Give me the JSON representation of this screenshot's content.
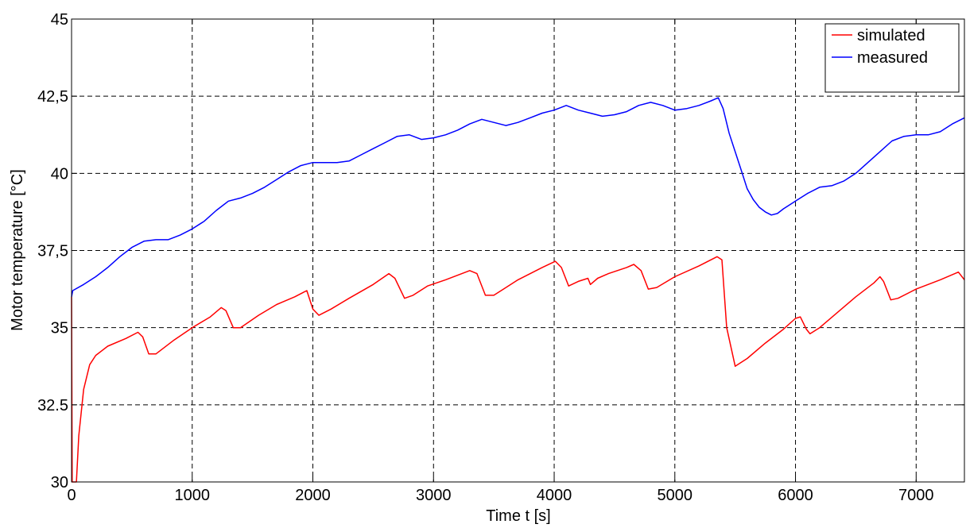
{
  "chart_data": {
    "type": "line",
    "title": "",
    "xlabel": "Time t [s]",
    "ylabel": "Motor temperature [°C]",
    "xlim": [
      0,
      7400
    ],
    "ylim": [
      30,
      45
    ],
    "xticks": [
      0,
      1000,
      2000,
      3000,
      4000,
      5000,
      6000,
      7000
    ],
    "xtick_labels": [
      "0",
      "1000",
      "2000",
      "3000",
      "4000",
      "5000",
      "6000",
      "7000"
    ],
    "yticks": [
      30,
      32.5,
      35,
      37.5,
      40,
      42.5,
      45
    ],
    "ytick_labels": [
      "30",
      "32.5",
      "35",
      "37,5",
      "40",
      "42,5",
      "45"
    ],
    "grid": true,
    "legend_position": "top-right",
    "series": [
      {
        "name": "simulated",
        "color": "#ff0000",
        "points": [
          [
            0,
            36.0
          ],
          [
            5,
            30.0
          ],
          [
            40,
            30.0
          ],
          [
            60,
            31.5
          ],
          [
            100,
            33.0
          ],
          [
            150,
            33.8
          ],
          [
            200,
            34.1
          ],
          [
            300,
            34.4
          ],
          [
            450,
            34.65
          ],
          [
            550,
            34.85
          ],
          [
            590,
            34.7
          ],
          [
            640,
            34.15
          ],
          [
            700,
            34.15
          ],
          [
            850,
            34.6
          ],
          [
            1000,
            35.0
          ],
          [
            1150,
            35.35
          ],
          [
            1240,
            35.65
          ],
          [
            1280,
            35.55
          ],
          [
            1340,
            35.0
          ],
          [
            1400,
            35.0
          ],
          [
            1550,
            35.4
          ],
          [
            1700,
            35.75
          ],
          [
            1850,
            36.0
          ],
          [
            1950,
            36.2
          ],
          [
            2000,
            35.6
          ],
          [
            2050,
            35.4
          ],
          [
            2150,
            35.6
          ],
          [
            2300,
            35.95
          ],
          [
            2500,
            36.4
          ],
          [
            2630,
            36.75
          ],
          [
            2680,
            36.6
          ],
          [
            2760,
            35.95
          ],
          [
            2830,
            36.05
          ],
          [
            2950,
            36.35
          ],
          [
            3100,
            36.55
          ],
          [
            3300,
            36.85
          ],
          [
            3360,
            36.75
          ],
          [
            3430,
            36.05
          ],
          [
            3500,
            36.05
          ],
          [
            3700,
            36.55
          ],
          [
            3900,
            36.95
          ],
          [
            4010,
            37.15
          ],
          [
            4060,
            36.95
          ],
          [
            4120,
            36.35
          ],
          [
            4200,
            36.5
          ],
          [
            4280,
            36.6
          ],
          [
            4300,
            36.4
          ],
          [
            4360,
            36.6
          ],
          [
            4450,
            36.75
          ],
          [
            4600,
            36.95
          ],
          [
            4660,
            37.05
          ],
          [
            4720,
            36.85
          ],
          [
            4780,
            36.25
          ],
          [
            4850,
            36.3
          ],
          [
            5000,
            36.65
          ],
          [
            5200,
            37.0
          ],
          [
            5350,
            37.3
          ],
          [
            5390,
            37.2
          ],
          [
            5430,
            35.0
          ],
          [
            5500,
            33.75
          ],
          [
            5600,
            34.0
          ],
          [
            5750,
            34.5
          ],
          [
            5900,
            34.95
          ],
          [
            6000,
            35.3
          ],
          [
            6040,
            35.35
          ],
          [
            6090,
            34.95
          ],
          [
            6120,
            34.8
          ],
          [
            6200,
            35.0
          ],
          [
            6350,
            35.5
          ],
          [
            6500,
            36.0
          ],
          [
            6650,
            36.45
          ],
          [
            6700,
            36.65
          ],
          [
            6730,
            36.5
          ],
          [
            6790,
            35.9
          ],
          [
            6850,
            35.95
          ],
          [
            7000,
            36.25
          ],
          [
            7200,
            36.55
          ],
          [
            7350,
            36.8
          ],
          [
            7400,
            36.55
          ]
        ]
      },
      {
        "name": "measured",
        "color": "#0000ff",
        "points": [
          [
            0,
            36.0
          ],
          [
            10,
            36.2
          ],
          [
            100,
            36.4
          ],
          [
            200,
            36.65
          ],
          [
            300,
            36.95
          ],
          [
            400,
            37.3
          ],
          [
            500,
            37.6
          ],
          [
            600,
            37.8
          ],
          [
            700,
            37.85
          ],
          [
            800,
            37.85
          ],
          [
            900,
            38.0
          ],
          [
            1000,
            38.2
          ],
          [
            1100,
            38.45
          ],
          [
            1200,
            38.8
          ],
          [
            1300,
            39.1
          ],
          [
            1400,
            39.2
          ],
          [
            1500,
            39.35
          ],
          [
            1600,
            39.55
          ],
          [
            1700,
            39.8
          ],
          [
            1800,
            40.05
          ],
          [
            1900,
            40.25
          ],
          [
            2000,
            40.35
          ],
          [
            2100,
            40.35
          ],
          [
            2200,
            40.35
          ],
          [
            2300,
            40.4
          ],
          [
            2400,
            40.6
          ],
          [
            2500,
            40.8
          ],
          [
            2600,
            41.0
          ],
          [
            2700,
            41.2
          ],
          [
            2800,
            41.25
          ],
          [
            2900,
            41.1
          ],
          [
            3000,
            41.15
          ],
          [
            3100,
            41.25
          ],
          [
            3200,
            41.4
          ],
          [
            3300,
            41.6
          ],
          [
            3400,
            41.75
          ],
          [
            3500,
            41.65
          ],
          [
            3600,
            41.55
          ],
          [
            3700,
            41.65
          ],
          [
            3800,
            41.8
          ],
          [
            3900,
            41.95
          ],
          [
            4000,
            42.05
          ],
          [
            4100,
            42.2
          ],
          [
            4200,
            42.05
          ],
          [
            4300,
            41.95
          ],
          [
            4400,
            41.85
          ],
          [
            4500,
            41.9
          ],
          [
            4600,
            42.0
          ],
          [
            4700,
            42.2
          ],
          [
            4800,
            42.3
          ],
          [
            4900,
            42.2
          ],
          [
            5000,
            42.05
          ],
          [
            5100,
            42.1
          ],
          [
            5200,
            42.2
          ],
          [
            5300,
            42.35
          ],
          [
            5360,
            42.45
          ],
          [
            5400,
            42.1
          ],
          [
            5450,
            41.3
          ],
          [
            5500,
            40.7
          ],
          [
            5550,
            40.1
          ],
          [
            5600,
            39.5
          ],
          [
            5650,
            39.15
          ],
          [
            5700,
            38.9
          ],
          [
            5750,
            38.75
          ],
          [
            5800,
            38.65
          ],
          [
            5850,
            38.7
          ],
          [
            5900,
            38.85
          ],
          [
            6000,
            39.1
          ],
          [
            6100,
            39.35
          ],
          [
            6200,
            39.55
          ],
          [
            6300,
            39.6
          ],
          [
            6400,
            39.75
          ],
          [
            6500,
            40.0
          ],
          [
            6600,
            40.35
          ],
          [
            6700,
            40.7
          ],
          [
            6800,
            41.05
          ],
          [
            6900,
            41.2
          ],
          [
            7000,
            41.25
          ],
          [
            7100,
            41.25
          ],
          [
            7200,
            41.35
          ],
          [
            7300,
            41.6
          ],
          [
            7400,
            41.8
          ]
        ]
      }
    ]
  }
}
